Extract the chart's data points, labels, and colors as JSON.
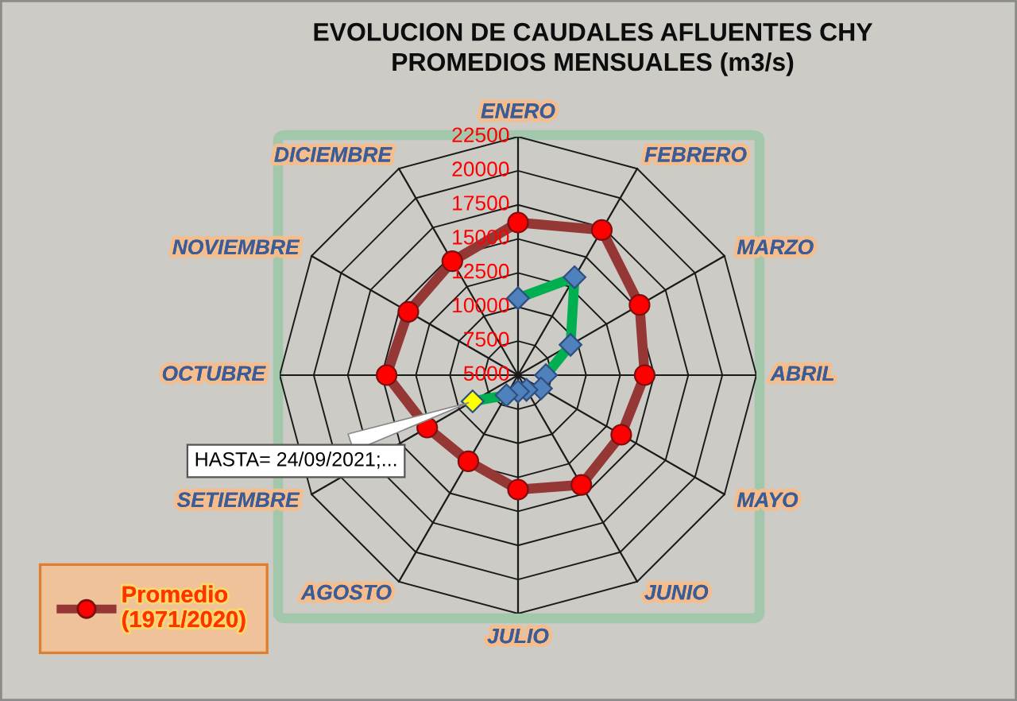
{
  "chart_data": {
    "type": "radar",
    "title": "EVOLUCION DE CAUDALES AFLUENTES CHY\nPROMEDIOS MENSUALES (m3/s)",
    "categories": [
      "ENERO",
      "FEBRERO",
      "MARZO",
      "ABRIL",
      "MAYO",
      "JUNIO",
      "JULIO",
      "AGOSTO",
      "SETIEMBRE",
      "OCTUBRE",
      "NOVIEMBRE",
      "DICIEMBRE"
    ],
    "ylim": [
      5000,
      22500
    ],
    "yticks": [
      5000,
      7500,
      10000,
      12500,
      15000,
      17500,
      20000,
      22500
    ],
    "grid": true,
    "legend": "bottom left",
    "series": [
      {
        "name": "Promedio\n(1971/2020)",
        "color": "#953735",
        "marker": "circle",
        "colors": [
          "#ff0000",
          "#ff0000",
          "#ff0000",
          "#ff0000",
          "#ff0000",
          "#ff0000",
          "#ff0000",
          "#ff0000",
          "#ff0000",
          "#ff0000",
          "#ff0000",
          "#ff0000"
        ],
        "values": [
          16200,
          17300,
          15300,
          14300,
          13750,
          14300,
          13400,
          12300,
          12700,
          14650,
          14300,
          14650
        ]
      },
      {
        "color": "#00b050",
        "marker": "diamond",
        "colors": [
          "#4f81bd",
          "#4f81bd",
          "#4f81bd",
          "#4f81bd",
          "#4f81bd",
          "#4f81bd",
          "#4f81bd",
          "#4f81bd",
          "#ffff00",
          null,
          null,
          null
        ],
        "values": [
          10650,
          13300,
          9450,
          7050,
          6950,
          6250,
          6200,
          6700,
          8850,
          null,
          null,
          null
        ]
      }
    ],
    "annotations": [
      "HASTA= 24/09/2021;..."
    ]
  }
}
